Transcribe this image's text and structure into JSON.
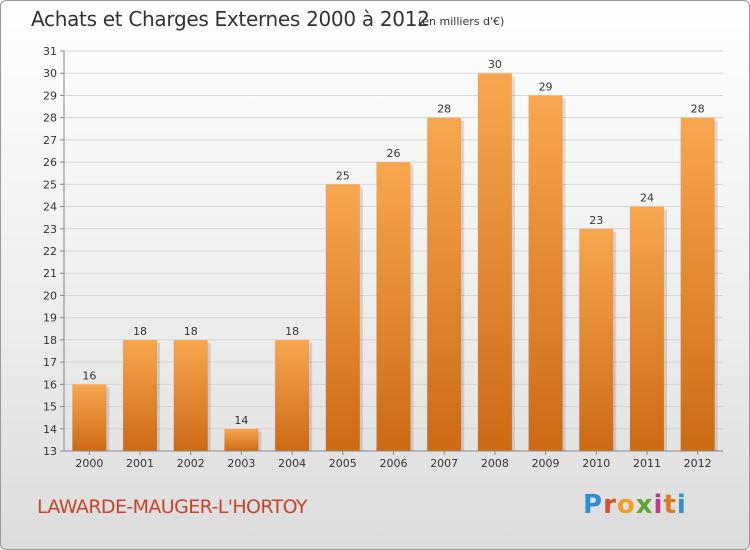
{
  "title": "Achats et Charges Externes 2000 à 2012",
  "unit": "(en milliers d'€)",
  "location": "LAWARDE-MAUGER-L'HORTOY",
  "logo": {
    "letters": [
      "P",
      "r",
      "o",
      "x",
      "i",
      "t",
      "i"
    ],
    "colors": [
      "#2e8fd0",
      "#d94e2b",
      "#f0a020",
      "#5aa82f",
      "#c03a8c",
      "#e07a20",
      "#2e8fd0"
    ]
  },
  "chart_data": {
    "type": "bar",
    "categories": [
      "2000",
      "2001",
      "2002",
      "2003",
      "2004",
      "2005",
      "2006",
      "2007",
      "2008",
      "2009",
      "2010",
      "2011",
      "2012"
    ],
    "values": [
      16,
      18,
      18,
      14,
      18,
      25,
      26,
      28,
      30,
      29,
      23,
      24,
      28
    ],
    "ylim": [
      13,
      31
    ],
    "yticks": [
      13,
      14,
      15,
      16,
      17,
      18,
      19,
      20,
      21,
      22,
      23,
      24,
      25,
      26,
      27,
      28,
      29,
      30,
      31
    ],
    "grid": true,
    "bar_color_light": "#f7a74f",
    "bar_color_dark": "#cd6a14"
  }
}
